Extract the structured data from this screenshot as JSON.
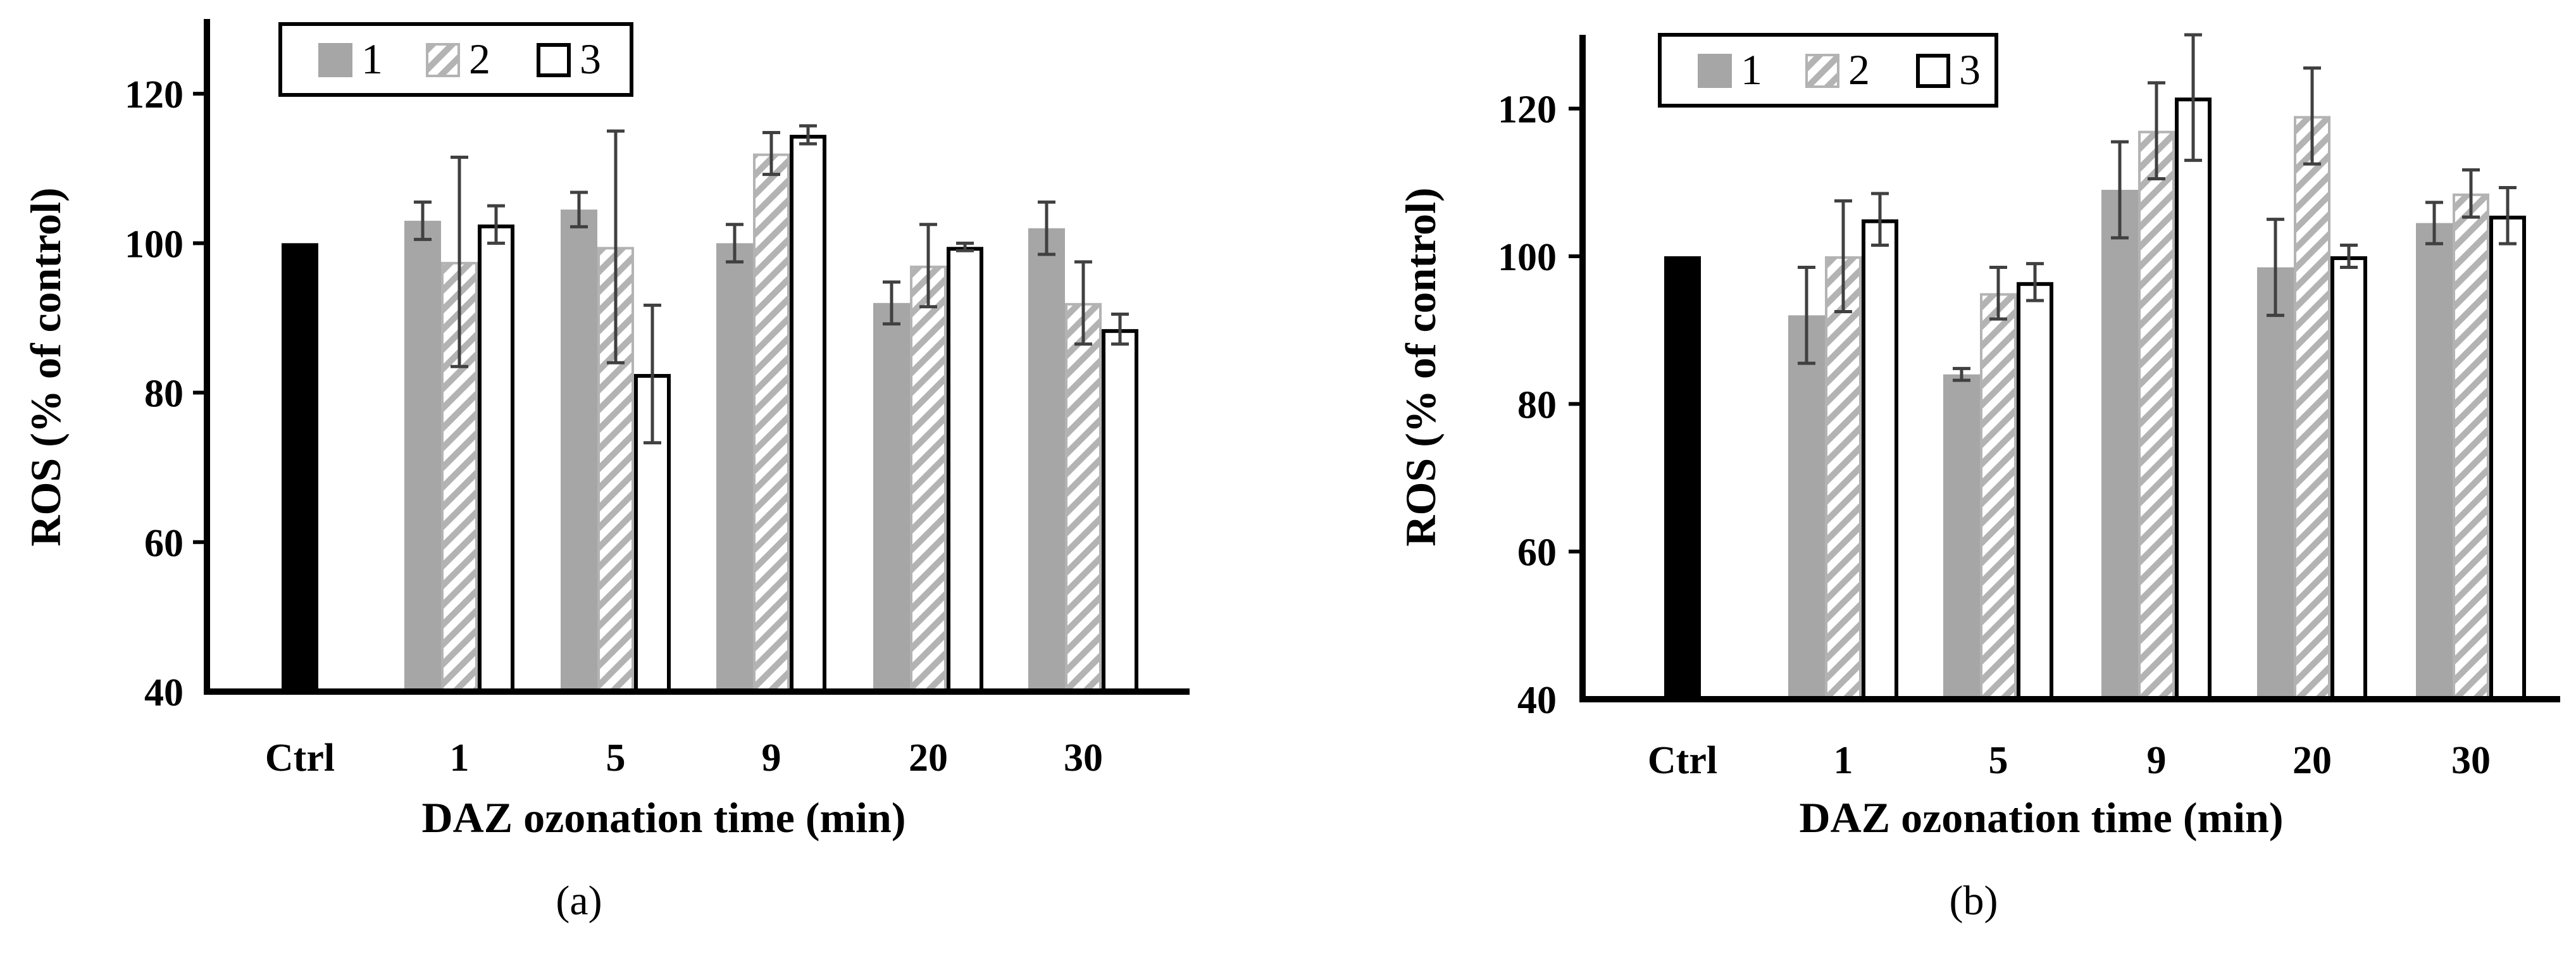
{
  "chart_data": [
    {
      "type": "bar",
      "panel_label": "(a)",
      "xlabel": "DAZ ozonation time (min)",
      "ylabel": "ROS (% of control)",
      "ylim": [
        40,
        130
      ],
      "yticks": [
        40,
        60,
        80,
        100,
        120
      ],
      "categories": [
        "Ctrl",
        "1",
        "5",
        "9",
        "20",
        "30"
      ],
      "control": {
        "value": 100,
        "color": "#000000"
      },
      "legend_position": "top-left",
      "series": [
        {
          "name": "1",
          "style": "solid-gray",
          "values": [
            null,
            103,
            104.5,
            100,
            92,
            102
          ],
          "errors": [
            null,
            2.5,
            2.3,
            2.5,
            2.8,
            3.5
          ]
        },
        {
          "name": "2",
          "style": "hatched",
          "values": [
            null,
            97.5,
            99.5,
            112,
            97,
            92
          ],
          "errors": [
            null,
            14,
            15.5,
            2.8,
            5.5,
            5.5
          ]
        },
        {
          "name": "3",
          "style": "open",
          "values": [
            null,
            102.5,
            82.5,
            114.5,
            99.5,
            88.5
          ],
          "errors": [
            null,
            2.5,
            9.2,
            1.2,
            0.5,
            2
          ]
        }
      ]
    },
    {
      "type": "bar",
      "panel_label": "(b)",
      "xlabel": "DAZ ozonation time (min)",
      "ylabel": "ROS (% of control)",
      "ylim": [
        40,
        130
      ],
      "yticks": [
        40,
        60,
        80,
        100,
        120
      ],
      "categories": [
        "Ctrl",
        "1",
        "5",
        "9",
        "20",
        "30"
      ],
      "control": {
        "value": 100,
        "color": "#000000"
      },
      "legend_position": "top-left",
      "series": [
        {
          "name": "1",
          "style": "solid-gray",
          "values": [
            null,
            92,
            84,
            109,
            98.5,
            104.5
          ],
          "errors": [
            null,
            6.5,
            0.8,
            6.5,
            6.5,
            2.8
          ]
        },
        {
          "name": "2",
          "style": "hatched",
          "values": [
            null,
            100,
            95,
            117,
            119,
            108.5
          ],
          "errors": [
            null,
            7.5,
            3.5,
            6.5,
            6.5,
            3.2
          ]
        },
        {
          "name": "3",
          "style": "open",
          "values": [
            null,
            105,
            96.5,
            121.5,
            100,
            105.5
          ],
          "errors": [
            null,
            3.5,
            2.5,
            8.5,
            1.5,
            3.8
          ]
        }
      ]
    }
  ]
}
